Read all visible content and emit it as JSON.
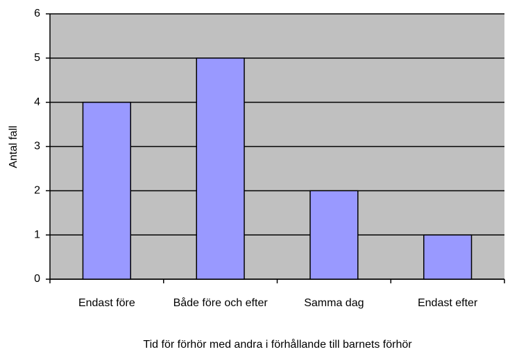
{
  "chart_data": {
    "type": "bar",
    "categories": [
      "Endast före",
      "Både före och efter",
      "Samma dag",
      "Endast efter"
    ],
    "values": [
      4,
      5,
      2,
      1
    ],
    "color": "#9999ff",
    "ylabel": "Antal fall",
    "xlabel": "Tid för förhör  med andra i förhållande till barnets förhör",
    "ylim": [
      0,
      6
    ],
    "yticks": [
      0,
      1,
      2,
      3,
      4,
      5,
      6
    ],
    "grid": true
  }
}
